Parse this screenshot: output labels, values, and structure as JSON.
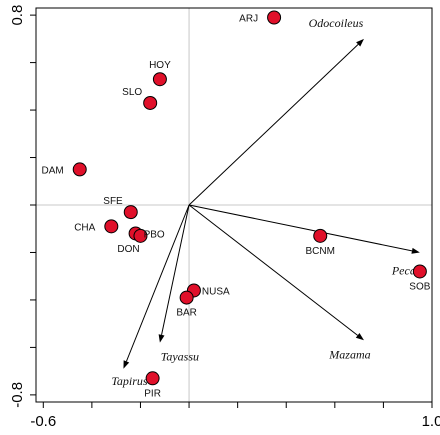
{
  "chart_data": {
    "type": "scatter",
    "title": "",
    "xlabel": "",
    "ylabel": "",
    "xlim": [
      -0.63,
      1.0
    ],
    "ylim": [
      -0.83,
      0.83
    ],
    "grid": false,
    "x_ticks": [
      {
        "value": -0.6,
        "label": "-0.6"
      },
      {
        "value": 1.0,
        "label": "1.0"
      }
    ],
    "y_ticks": [
      {
        "value": 0.8,
        "label": "0.8"
      },
      {
        "value": -0.8,
        "label": "-0.8"
      }
    ],
    "colors": {
      "point_fill": "#e0102a",
      "point_stroke": "#000000",
      "arrow": "#000000",
      "reference_lines": "#c8c8c8"
    },
    "origin": [
      0,
      0
    ],
    "sites": [
      {
        "label": "ARJ",
        "x": 0.35,
        "y": 0.79,
        "label_pos": "left"
      },
      {
        "label": "HOY",
        "x": -0.12,
        "y": 0.53,
        "label_pos": "above"
      },
      {
        "label": "SLO",
        "x": -0.16,
        "y": 0.43,
        "label_pos": "upper-left"
      },
      {
        "label": "DAM",
        "x": -0.45,
        "y": 0.15,
        "label_pos": "left"
      },
      {
        "label": "SFE",
        "x": -0.24,
        "y": -0.03,
        "label_pos": "upper-left"
      },
      {
        "label": "CHA",
        "x": -0.32,
        "y": -0.09,
        "label_pos": "left"
      },
      {
        "label": "PBO",
        "x": -0.22,
        "y": -0.12,
        "label_pos": "right"
      },
      {
        "label": "DON",
        "x": -0.2,
        "y": -0.13,
        "label_pos": "below-left"
      },
      {
        "label": "NUSA",
        "x": 0.02,
        "y": -0.36,
        "label_pos": "right"
      },
      {
        "label": "BAR",
        "x": -0.01,
        "y": -0.39,
        "label_pos": "below"
      },
      {
        "label": "BCNM",
        "x": 0.54,
        "y": -0.13,
        "label_pos": "below"
      },
      {
        "label": "SOB",
        "x": 0.95,
        "y": -0.28,
        "label_pos": "below"
      },
      {
        "label": "PIR",
        "x": -0.15,
        "y": -0.73,
        "label_pos": "below"
      }
    ],
    "variables": [
      {
        "label": "Odocoileus",
        "x": 0.72,
        "y": 0.7
      },
      {
        "label": "Pecari",
        "x": 0.95,
        "y": -0.2
      },
      {
        "label": "Mazama",
        "x": 0.72,
        "y": -0.57
      },
      {
        "label": "Tayassu",
        "x": -0.12,
        "y": -0.58
      },
      {
        "label": "Tapirus",
        "x": -0.27,
        "y": -0.69
      }
    ]
  }
}
